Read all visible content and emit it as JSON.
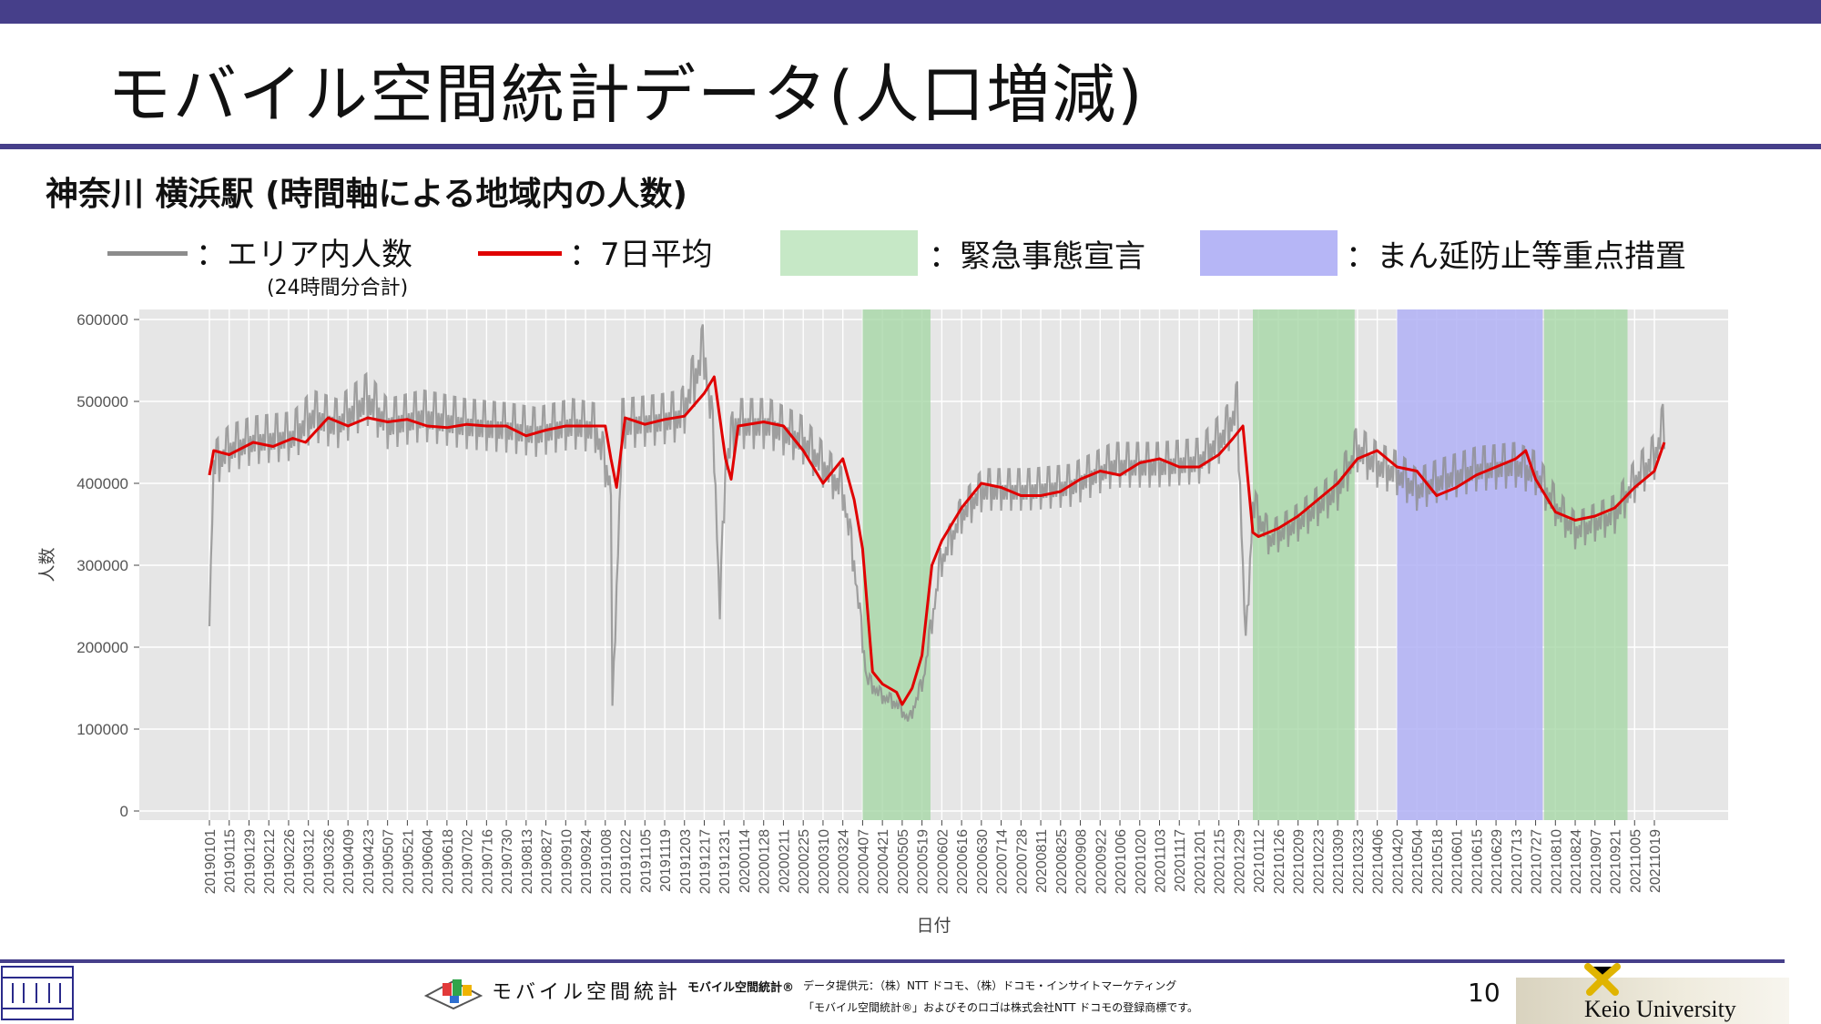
{
  "slide": {
    "title": "モバイル空間統計データ(人口増減)",
    "subtitle": "神奈川 横浜駅 (時間軸による地域内の人数)",
    "page_number": "10"
  },
  "legend": {
    "area_count": "：エリア内人数",
    "area_note": "(24時間分合計)",
    "avg7": "：7日平均",
    "emergency": "：緊急事態宣言",
    "priority": "：まん延防止等重点措置"
  },
  "footer": {
    "brand": "モバイル空間統計",
    "brand_mark": "モバイル空間統計®",
    "provider": "データ提供元：（株）NTT ドコモ、（株）ドコモ・インサイトマーケティング",
    "notice": "「モバイル空間統計®」およびそのロゴは株式会社NTT ドコモの登録商標です。",
    "university": "Keio University"
  },
  "colors": {
    "daily": "#8c8c8c",
    "avg7": "#e00000",
    "emergency": "#a6d7a6",
    "priority": "#b0b0f5",
    "plot_bg": "#e6e6e6",
    "accent": "#463f8a"
  },
  "chart_data": {
    "type": "line",
    "xlabel": "日付",
    "ylabel": "人数",
    "ylim": [
      0,
      600000
    ],
    "yticks": [
      0,
      100000,
      200000,
      300000,
      400000,
      500000,
      600000
    ],
    "xticks": [
      "20190101",
      "20190115",
      "20190129",
      "20190212",
      "20190226",
      "20190312",
      "20190326",
      "20190409",
      "20190423",
      "20190507",
      "20190521",
      "20190604",
      "20190618",
      "20190702",
      "20190716",
      "20190730",
      "20190813",
      "20190827",
      "20190910",
      "20190924",
      "20191008",
      "20191022",
      "20191105",
      "20191119",
      "20191203",
      "20191217",
      "20191231",
      "20200114",
      "20200128",
      "20200211",
      "20200225",
      "20200310",
      "20200324",
      "20200407",
      "20200421",
      "20200505",
      "20200519",
      "20200602",
      "20200616",
      "20200630",
      "20200714",
      "20200728",
      "20200811",
      "20200825",
      "20200908",
      "20200922",
      "20201006",
      "20201020",
      "20201103",
      "20201117",
      "20201201",
      "20201215",
      "20201229",
      "20210112",
      "20210126",
      "20210209",
      "20210223",
      "20210309",
      "20210323",
      "20210406",
      "20210420",
      "20210504",
      "20210518",
      "20210601",
      "20210615",
      "20210629",
      "20210713",
      "20210727",
      "20210810",
      "20210824",
      "20210907",
      "20210921",
      "20211005",
      "20211019"
    ],
    "grid": true,
    "shaded_periods": [
      {
        "kind": "emergency",
        "start": "2020-04-07",
        "end": "2020-05-25"
      },
      {
        "kind": "emergency",
        "start": "2021-01-08",
        "end": "2021-03-21"
      },
      {
        "kind": "priority",
        "start": "2021-04-20",
        "end": "2021-08-01"
      },
      {
        "kind": "emergency",
        "start": "2021-08-02",
        "end": "2021-09-30"
      }
    ],
    "series": [
      {
        "name": "エリア内人数",
        "x": [
          "2019-01-01",
          "2019-01-04",
          "2019-01-15",
          "2019-02-01",
          "2019-03-01",
          "2019-03-15",
          "2019-04-01",
          "2019-04-23",
          "2019-05-07",
          "2019-06-01",
          "2019-07-01",
          "2019-08-01",
          "2019-08-20",
          "2019-09-15",
          "2019-10-01",
          "2019-10-12",
          "2019-10-13",
          "2019-10-20",
          "2019-11-15",
          "2019-12-01",
          "2019-12-17",
          "2019-12-24",
          "2019-12-28",
          "2020-01-01",
          "2020-01-08",
          "2020-02-01",
          "2020-02-25",
          "2020-03-10",
          "2020-03-24",
          "2020-04-01",
          "2020-04-10",
          "2020-04-20",
          "2020-05-01",
          "2020-05-10",
          "2020-05-20",
          "2020-06-01",
          "2020-06-16",
          "2020-07-01",
          "2020-08-01",
          "2020-09-01",
          "2020-10-01",
          "2020-11-01",
          "2020-12-01",
          "2020-12-20",
          "2020-12-28",
          "2021-01-03",
          "2021-01-08",
          "2021-01-20",
          "2021-02-09",
          "2021-03-09",
          "2021-03-23",
          "2021-04-06",
          "2021-04-20",
          "2021-05-04",
          "2021-05-18",
          "2021-06-15",
          "2021-07-13",
          "2021-07-27",
          "2021-08-10",
          "2021-08-24",
          "2021-09-07",
          "2021-09-21",
          "2021-10-05",
          "2021-10-19",
          "2021-10-26"
        ],
        "values": [
          240000,
          420000,
          440000,
          450000,
          455000,
          480000,
          470000,
          500000,
          470000,
          480000,
          470000,
          465000,
          460000,
          470000,
          465000,
          395000,
          120000,
          470000,
          475000,
          480000,
          560000,
          440000,
          240000,
          420000,
          470000,
          470000,
          450000,
          420000,
          390000,
          300000,
          160000,
          140000,
          130000,
          110000,
          160000,
          300000,
          360000,
          390000,
          390000,
          395000,
          420000,
          420000,
          425000,
          460000,
          490000,
          200000,
          370000,
          330000,
          350000,
          390000,
          440000,
          420000,
          410000,
          390000,
          400000,
          415000,
          420000,
          410000,
          370000,
          340000,
          350000,
          360000,
          400000,
          430000,
          470000
        ]
      },
      {
        "name": "7日平均",
        "x": [
          "2019-01-01",
          "2019-01-04",
          "2019-01-15",
          "2019-02-01",
          "2019-02-15",
          "2019-03-01",
          "2019-03-10",
          "2019-03-26",
          "2019-04-09",
          "2019-04-23",
          "2019-05-07",
          "2019-05-21",
          "2019-06-04",
          "2019-06-18",
          "2019-07-02",
          "2019-07-16",
          "2019-07-30",
          "2019-08-13",
          "2019-08-27",
          "2019-09-10",
          "2019-09-24",
          "2019-10-08",
          "2019-10-12",
          "2019-10-16",
          "2019-10-22",
          "2019-11-05",
          "2019-11-19",
          "2019-12-03",
          "2019-12-17",
          "2019-12-24",
          "2020-01-01",
          "2020-01-05",
          "2020-01-10",
          "2020-01-28",
          "2020-02-11",
          "2020-02-25",
          "2020-03-10",
          "2020-03-17",
          "2020-03-24",
          "2020-04-01",
          "2020-04-07",
          "2020-04-14",
          "2020-04-21",
          "2020-05-01",
          "2020-05-05",
          "2020-05-12",
          "2020-05-19",
          "2020-05-26",
          "2020-06-02",
          "2020-06-16",
          "2020-06-30",
          "2020-07-14",
          "2020-07-28",
          "2020-08-11",
          "2020-08-25",
          "2020-09-08",
          "2020-09-22",
          "2020-10-06",
          "2020-10-20",
          "2020-11-03",
          "2020-11-17",
          "2020-12-01",
          "2020-12-15",
          "2020-12-25",
          "2021-01-01",
          "2021-01-08",
          "2021-01-12",
          "2021-01-26",
          "2021-02-09",
          "2021-02-23",
          "2021-03-09",
          "2021-03-23",
          "2021-04-06",
          "2021-04-20",
          "2021-05-04",
          "2021-05-18",
          "2021-06-01",
          "2021-06-15",
          "2021-06-29",
          "2021-07-13",
          "2021-07-20",
          "2021-07-27",
          "2021-08-10",
          "2021-08-24",
          "2021-09-07",
          "2021-09-21",
          "2021-10-05",
          "2021-10-19",
          "2021-10-26"
        ],
        "values": [
          410000,
          440000,
          435000,
          450000,
          445000,
          455000,
          450000,
          480000,
          470000,
          480000,
          475000,
          478000,
          470000,
          468000,
          472000,
          470000,
          470000,
          458000,
          465000,
          470000,
          470000,
          470000,
          430000,
          395000,
          480000,
          472000,
          478000,
          482000,
          510000,
          530000,
          430000,
          405000,
          470000,
          475000,
          470000,
          440000,
          400000,
          415000,
          430000,
          380000,
          320000,
          170000,
          155000,
          145000,
          130000,
          150000,
          190000,
          300000,
          330000,
          370000,
          400000,
          395000,
          385000,
          385000,
          390000,
          405000,
          415000,
          410000,
          425000,
          430000,
          420000,
          420000,
          435000,
          455000,
          470000,
          340000,
          335000,
          345000,
          360000,
          380000,
          400000,
          430000,
          440000,
          420000,
          415000,
          385000,
          395000,
          410000,
          420000,
          430000,
          440000,
          405000,
          365000,
          355000,
          360000,
          370000,
          395000,
          415000,
          450000
        ]
      }
    ]
  }
}
